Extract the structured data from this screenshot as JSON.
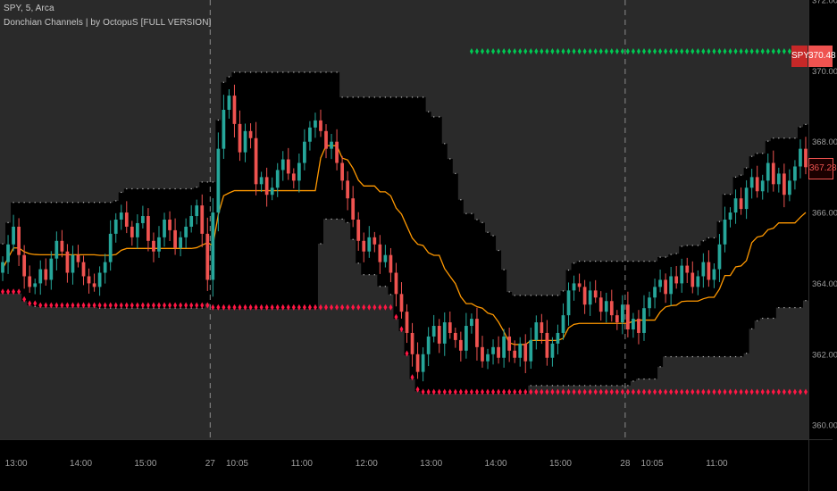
{
  "header": {
    "symbol_line": "SPY, 5, Arca",
    "indicator_line": "Donchian Channels | by OctopuS [FULL VERSION]"
  },
  "price_badges": {
    "symbol_tag": "SPY",
    "upper_value": "370.48",
    "last_value": "367.28"
  },
  "colors": {
    "bull": "#26a69a",
    "bear": "#ef5350",
    "basis": "#ff9800",
    "upper_marker": "#00c853",
    "lower_marker": "#ff1744",
    "channel_fill": "#2a2a2a",
    "channel_dots": "#bdbdbd"
  },
  "chart_data": {
    "type": "candlestick",
    "title": "",
    "xlabel": "",
    "ylabel": "",
    "ylim": [
      359.6,
      372.0
    ],
    "y_ticks": [
      {
        "value": 360,
        "label": "360.00"
      },
      {
        "value": 362,
        "label": "362.00"
      },
      {
        "value": 364,
        "label": "364.00"
      },
      {
        "value": 366,
        "label": "366.00"
      },
      {
        "value": 368,
        "label": "368.00"
      },
      {
        "value": 370,
        "label": "370.00"
      },
      {
        "value": 372,
        "label": "372.00"
      }
    ],
    "x_ticks": [
      {
        "index": 3,
        "label": "13:00"
      },
      {
        "index": 15,
        "label": "14:00"
      },
      {
        "index": 27,
        "label": "15:00"
      },
      {
        "index": 39,
        "label": "27"
      },
      {
        "index": 44,
        "label": "10:05"
      },
      {
        "index": 56,
        "label": "11:00"
      },
      {
        "index": 68,
        "label": "12:00"
      },
      {
        "index": 80,
        "label": "13:00"
      },
      {
        "index": 92,
        "label": "14:00"
      },
      {
        "index": 104,
        "label": "15:00"
      },
      {
        "index": 116,
        "label": "28"
      },
      {
        "index": 121,
        "label": "10:05"
      },
      {
        "index": 133,
        "label": "11:00"
      }
    ],
    "session_breaks": [
      39,
      116
    ],
    "closes": [
      364.6,
      365.1,
      365.6,
      364.8,
      364.2,
      363.9,
      364.0,
      364.4,
      364.1,
      364.7,
      365.2,
      364.9,
      364.3,
      364.8,
      364.6,
      364.2,
      364.0,
      363.9,
      364.3,
      364.6,
      365.4,
      365.8,
      366.0,
      365.6,
      365.3,
      365.7,
      365.9,
      365.2,
      364.9,
      365.3,
      365.8,
      365.5,
      365.0,
      365.3,
      365.6,
      365.9,
      366.2,
      365.4,
      364.1,
      366.0,
      367.8,
      368.9,
      369.3,
      368.5,
      367.7,
      368.3,
      368.1,
      366.8,
      367.0,
      366.5,
      366.7,
      367.2,
      367.5,
      367.1,
      366.9,
      367.4,
      368.0,
      368.4,
      368.6,
      368.3,
      367.8,
      368.0,
      367.4,
      366.9,
      366.4,
      365.8,
      365.2,
      364.9,
      365.3,
      365.1,
      364.6,
      364.8,
      364.3,
      363.7,
      363.2,
      362.6,
      362.0,
      361.5,
      362.0,
      362.5,
      362.8,
      362.3,
      362.9,
      362.6,
      362.4,
      362.1,
      362.8,
      363.0,
      362.2,
      361.8,
      362.0,
      362.2,
      361.9,
      362.5,
      362.1,
      361.9,
      362.3,
      361.8,
      362.4,
      362.9,
      362.6,
      361.9,
      362.3,
      362.6,
      363.1,
      363.8,
      364.0,
      363.9,
      363.4,
      363.8,
      363.6,
      363.2,
      363.5,
      363.1,
      362.9,
      363.4,
      362.7,
      363.0,
      362.6,
      363.3,
      363.6,
      363.9,
      364.1,
      363.7,
      364.2,
      364.0,
      364.5,
      364.3,
      363.9,
      364.2,
      364.6,
      364.1,
      364.4,
      365.1,
      365.8,
      366.0,
      366.4,
      366.1,
      366.7,
      367.0,
      366.6,
      366.9,
      367.4,
      366.8,
      367.1,
      366.5,
      366.9,
      367.3,
      367.8,
      367.28
    ]
  }
}
